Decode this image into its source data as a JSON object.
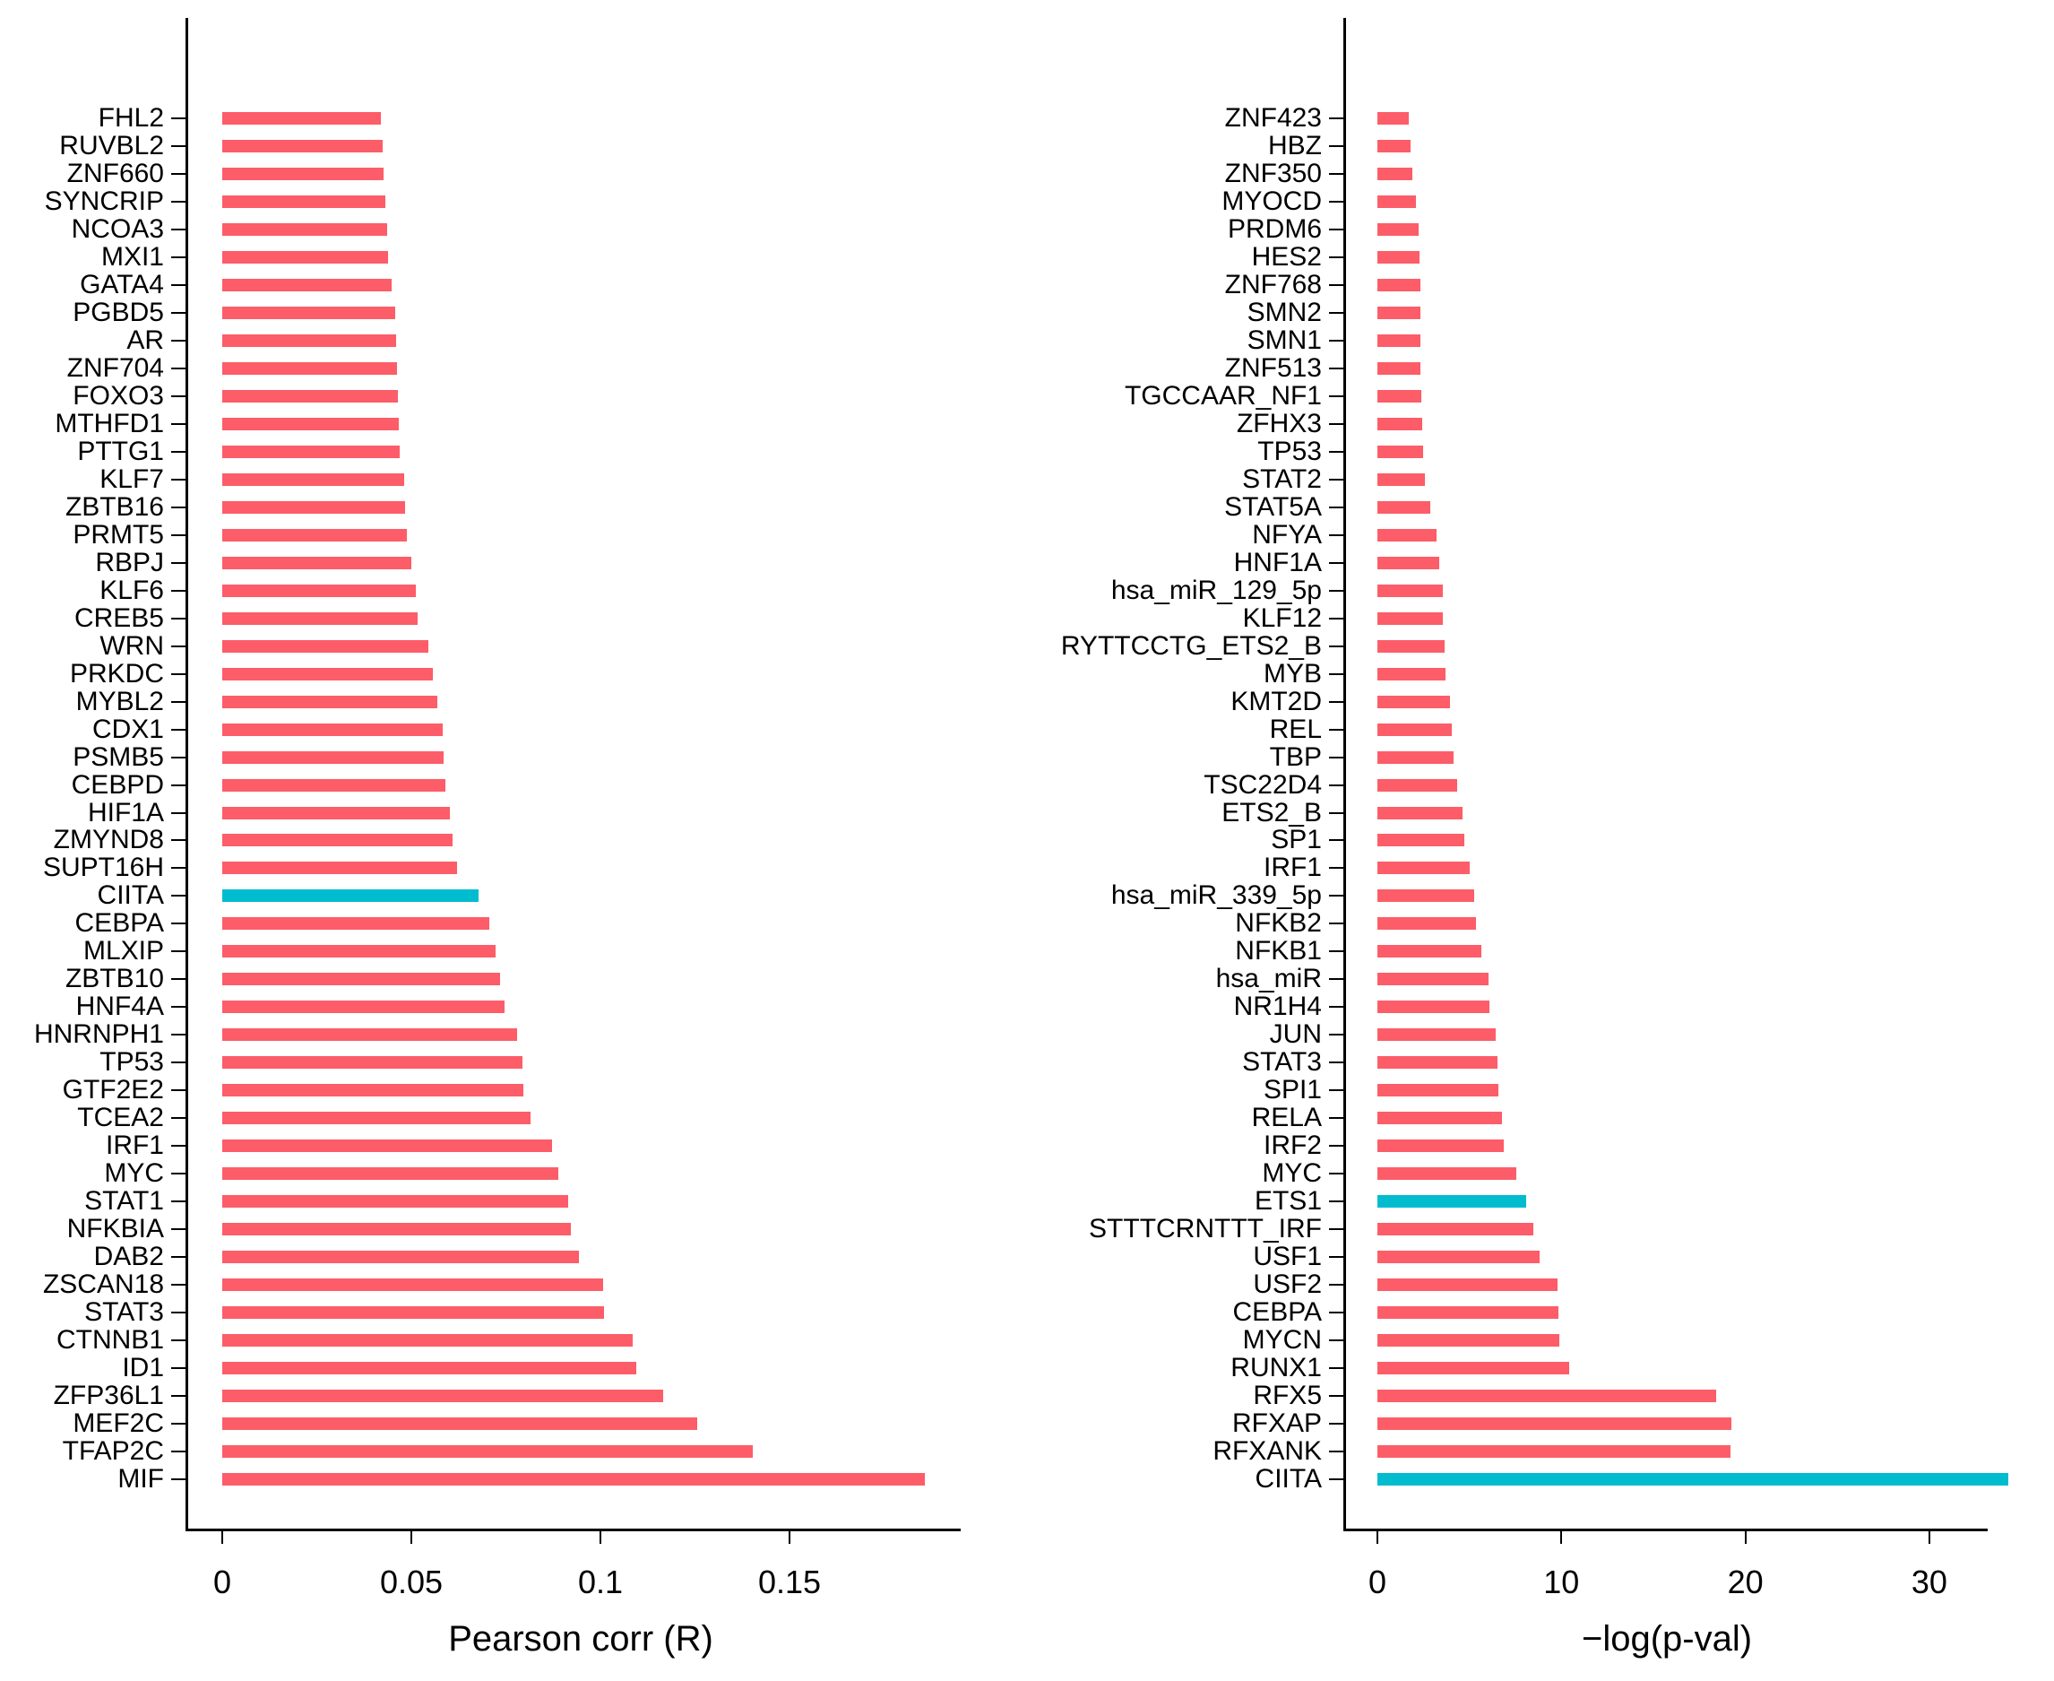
{
  "figure": {
    "background": "#ffffff"
  },
  "colors": {
    "bar_default": "#FC5D68",
    "bar_highlight": "#00BCCE",
    "axis": "#000000",
    "text": "#000000"
  },
  "chart_data": [
    {
      "type": "bar",
      "orientation": "horizontal",
      "panel": "left",
      "title": "",
      "xlabel": "Pearson corr (R)",
      "ylabel": "",
      "grid": false,
      "legend": null,
      "xlim": [
        0,
        0.195
      ],
      "x_ticks": [
        {
          "value": 0,
          "label": "0"
        },
        {
          "value": 0.05,
          "label": "0.05"
        },
        {
          "value": 0.1,
          "label": "0.1"
        },
        {
          "value": 0.15,
          "label": "0.15"
        }
      ],
      "bars": [
        {
          "label": "FHL2",
          "value": 0.042,
          "highlight": false
        },
        {
          "label": "RUVBL2",
          "value": 0.0424,
          "highlight": false
        },
        {
          "label": "ZNF660",
          "value": 0.0427,
          "highlight": false
        },
        {
          "label": "SYNCRIP",
          "value": 0.0432,
          "highlight": false
        },
        {
          "label": "NCOA3",
          "value": 0.0436,
          "highlight": false
        },
        {
          "label": "MXI1",
          "value": 0.0439,
          "highlight": false
        },
        {
          "label": "GATA4",
          "value": 0.0447,
          "highlight": false
        },
        {
          "label": "PGBD5",
          "value": 0.0458,
          "highlight": false
        },
        {
          "label": "AR",
          "value": 0.046,
          "highlight": false
        },
        {
          "label": "ZNF704",
          "value": 0.0461,
          "highlight": false
        },
        {
          "label": "FOXO3",
          "value": 0.0464,
          "highlight": false
        },
        {
          "label": "MTHFD1",
          "value": 0.0468,
          "highlight": false
        },
        {
          "label": "PTTG1",
          "value": 0.047,
          "highlight": false
        },
        {
          "label": "KLF7",
          "value": 0.0482,
          "highlight": false
        },
        {
          "label": "ZBTB16",
          "value": 0.0484,
          "highlight": false
        },
        {
          "label": "PRMT5",
          "value": 0.0489,
          "highlight": false
        },
        {
          "label": "RBPJ",
          "value": 0.0501,
          "highlight": false
        },
        {
          "label": "KLF6",
          "value": 0.0512,
          "highlight": false
        },
        {
          "label": "CREB5",
          "value": 0.0517,
          "highlight": false
        },
        {
          "label": "WRN",
          "value": 0.0545,
          "highlight": false
        },
        {
          "label": "PRKDC",
          "value": 0.0558,
          "highlight": false
        },
        {
          "label": "MYBL2",
          "value": 0.0569,
          "highlight": false
        },
        {
          "label": "CDX1",
          "value": 0.0582,
          "highlight": false
        },
        {
          "label": "PSMB5",
          "value": 0.0586,
          "highlight": false
        },
        {
          "label": "CEBPD",
          "value": 0.0591,
          "highlight": false
        },
        {
          "label": "HIF1A",
          "value": 0.0602,
          "highlight": false
        },
        {
          "label": "ZMYND8",
          "value": 0.061,
          "highlight": false
        },
        {
          "label": "SUPT16H",
          "value": 0.0621,
          "highlight": false
        },
        {
          "label": "CIITA",
          "value": 0.0678,
          "highlight": true
        },
        {
          "label": "CEBPA",
          "value": 0.0706,
          "highlight": false
        },
        {
          "label": "MLXIP",
          "value": 0.0722,
          "highlight": false
        },
        {
          "label": "ZBTB10",
          "value": 0.0734,
          "highlight": false
        },
        {
          "label": "HNF4A",
          "value": 0.0746,
          "highlight": false
        },
        {
          "label": "HNRNPH1",
          "value": 0.078,
          "highlight": false
        },
        {
          "label": "TP53",
          "value": 0.0793,
          "highlight": false
        },
        {
          "label": "GTF2E2",
          "value": 0.0797,
          "highlight": false
        },
        {
          "label": "TCEA2",
          "value": 0.0815,
          "highlight": false
        },
        {
          "label": "IRF1",
          "value": 0.0873,
          "highlight": false
        },
        {
          "label": "MYC",
          "value": 0.0888,
          "highlight": false
        },
        {
          "label": "STAT1",
          "value": 0.0914,
          "highlight": false
        },
        {
          "label": "NFKBIA",
          "value": 0.0922,
          "highlight": false
        },
        {
          "label": "DAB2",
          "value": 0.0943,
          "highlight": false
        },
        {
          "label": "ZSCAN18",
          "value": 0.1007,
          "highlight": false
        },
        {
          "label": "STAT3",
          "value": 0.101,
          "highlight": false
        },
        {
          "label": "CTNNB1",
          "value": 0.1085,
          "highlight": false
        },
        {
          "label": "ID1",
          "value": 0.1095,
          "highlight": false
        },
        {
          "label": "ZFP36L1",
          "value": 0.1167,
          "highlight": false
        },
        {
          "label": "MEF2C",
          "value": 0.1256,
          "highlight": false
        },
        {
          "label": "TFAP2C",
          "value": 0.1403,
          "highlight": false
        },
        {
          "label": "MIF",
          "value": 0.1858,
          "highlight": false
        }
      ]
    },
    {
      "type": "bar",
      "orientation": "horizontal",
      "panel": "right",
      "title": "",
      "xlabel": "−log(p-val)",
      "ylabel": "",
      "grid": false,
      "legend": null,
      "xlim": [
        0,
        34.5
      ],
      "x_ticks": [
        {
          "value": 0,
          "label": "0"
        },
        {
          "value": 10,
          "label": "10"
        },
        {
          "value": 20,
          "label": "20"
        },
        {
          "value": 30,
          "label": "30"
        }
      ],
      "bars": [
        {
          "label": "ZNF423",
          "value": 1.7,
          "highlight": false
        },
        {
          "label": "HBZ",
          "value": 1.8,
          "highlight": false
        },
        {
          "label": "ZNF350",
          "value": 1.92,
          "highlight": false
        },
        {
          "label": "MYOCD",
          "value": 2.08,
          "highlight": false
        },
        {
          "label": "PRDM6",
          "value": 2.25,
          "highlight": false
        },
        {
          "label": "HES2",
          "value": 2.3,
          "highlight": false
        },
        {
          "label": "ZNF768",
          "value": 2.32,
          "highlight": false
        },
        {
          "label": "SMN2",
          "value": 2.32,
          "highlight": false
        },
        {
          "label": "SMN1",
          "value": 2.32,
          "highlight": false
        },
        {
          "label": "ZNF513",
          "value": 2.35,
          "highlight": false
        },
        {
          "label": "TGCCAAR_NF1",
          "value": 2.4,
          "highlight": false
        },
        {
          "label": "ZFHX3",
          "value": 2.44,
          "highlight": false
        },
        {
          "label": "TP53",
          "value": 2.5,
          "highlight": false
        },
        {
          "label": "STAT2",
          "value": 2.6,
          "highlight": false
        },
        {
          "label": "STAT5A",
          "value": 2.85,
          "highlight": false
        },
        {
          "label": "NFYA",
          "value": 3.2,
          "highlight": false
        },
        {
          "label": "HNF1A",
          "value": 3.37,
          "highlight": false
        },
        {
          "label": "hsa_miR_129_5p",
          "value": 3.58,
          "highlight": false
        },
        {
          "label": "KLF12",
          "value": 3.58,
          "highlight": false
        },
        {
          "label": "RYTTCCTG_ETS2_B",
          "value": 3.66,
          "highlight": false
        },
        {
          "label": "MYB",
          "value": 3.7,
          "highlight": false
        },
        {
          "label": "KMT2D",
          "value": 3.95,
          "highlight": false
        },
        {
          "label": "REL",
          "value": 4.05,
          "highlight": false
        },
        {
          "label": "TBP",
          "value": 4.15,
          "highlight": false
        },
        {
          "label": "TSC22D4",
          "value": 4.35,
          "highlight": false
        },
        {
          "label": "ETS2_B",
          "value": 4.64,
          "highlight": false
        },
        {
          "label": "SP1",
          "value": 4.73,
          "highlight": false
        },
        {
          "label": "IRF1",
          "value": 5.0,
          "highlight": false
        },
        {
          "label": "hsa_miR_339_5p",
          "value": 5.26,
          "highlight": false
        },
        {
          "label": "NFKB2",
          "value": 5.34,
          "highlight": false
        },
        {
          "label": "NFKB1",
          "value": 5.67,
          "highlight": false
        },
        {
          "label": "hsa_miR",
          "value": 6.03,
          "highlight": false
        },
        {
          "label": "NR1H4",
          "value": 6.07,
          "highlight": false
        },
        {
          "label": "JUN",
          "value": 6.41,
          "highlight": false
        },
        {
          "label": "STAT3",
          "value": 6.52,
          "highlight": false
        },
        {
          "label": "SPI1",
          "value": 6.58,
          "highlight": false
        },
        {
          "label": "RELA",
          "value": 6.76,
          "highlight": false
        },
        {
          "label": "IRF2",
          "value": 6.89,
          "highlight": false
        },
        {
          "label": "MYC",
          "value": 7.53,
          "highlight": false
        },
        {
          "label": "ETS1",
          "value": 8.07,
          "highlight": true
        },
        {
          "label": "STTTCRNTTT_IRF",
          "value": 8.48,
          "highlight": false
        },
        {
          "label": "USF1",
          "value": 8.84,
          "highlight": false
        },
        {
          "label": "USF2",
          "value": 9.79,
          "highlight": false
        },
        {
          "label": "CEBPA",
          "value": 9.82,
          "highlight": false
        },
        {
          "label": "MYCN",
          "value": 9.89,
          "highlight": false
        },
        {
          "label": "RUNX1",
          "value": 10.4,
          "highlight": false
        },
        {
          "label": "RFX5",
          "value": 18.4,
          "highlight": false
        },
        {
          "label": "RFXAP",
          "value": 19.25,
          "highlight": false
        },
        {
          "label": "RFXANK",
          "value": 19.2,
          "highlight": false
        },
        {
          "label": "CIITA",
          "value": 34.3,
          "highlight": true
        }
      ]
    }
  ]
}
